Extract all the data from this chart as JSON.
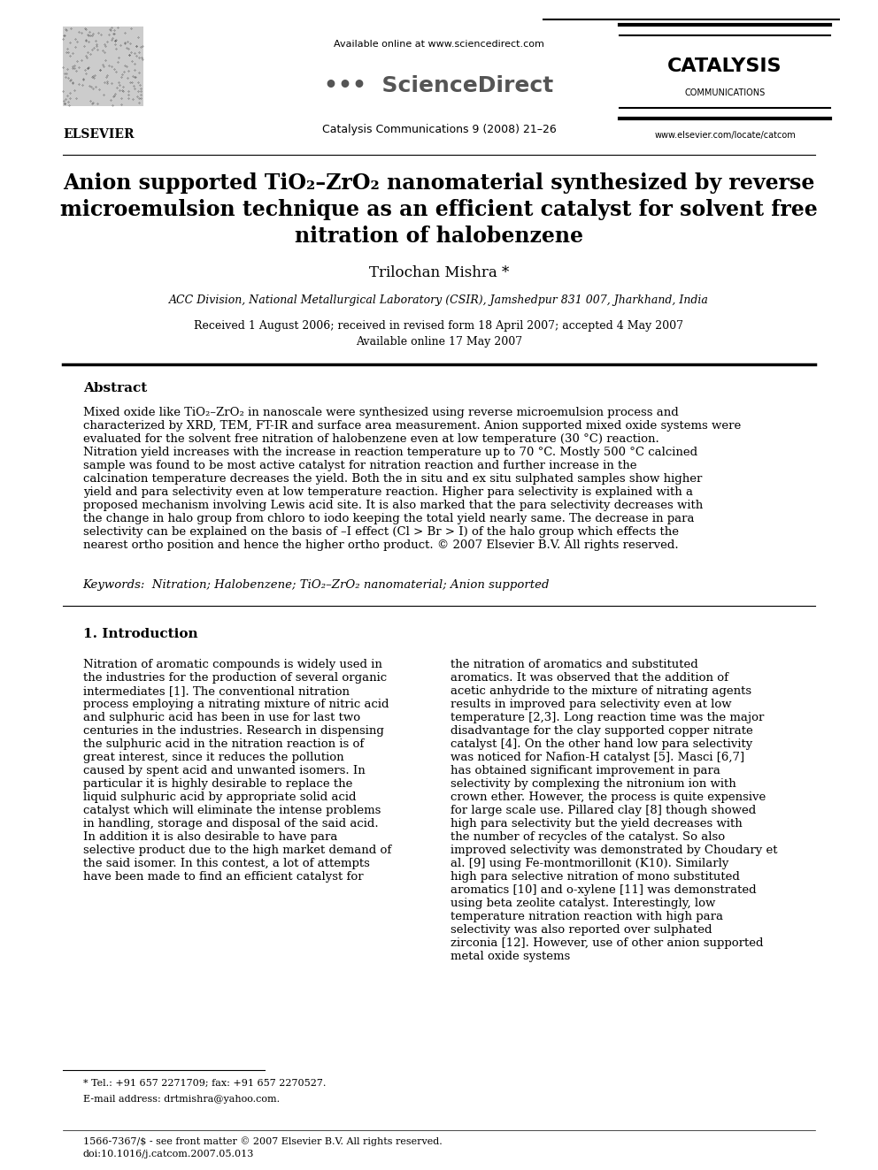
{
  "bg_color": "#ffffff",
  "title_line1": "Anion supported TiO₂–ZrO₂ nanomaterial synthesized by reverse",
  "title_line2": "microemulsion technique as an efficient catalyst for solvent free",
  "title_line3": "nitration of halobenzene",
  "author": "Trilochan Mishra *",
  "affiliation": "ACC Division, National Metallurgical Laboratory (CSIR), Jamshedpur 831 007, Jharkhand, India",
  "dates": "Received 1 August 2006; received in revised form 18 April 2007; accepted 4 May 2007",
  "available": "Available online 17 May 2007",
  "journal_header": "Available online at www.sciencedirect.com",
  "journal_name": "Catalysis Communications 9 (2008) 21–26",
  "journal_website": "www.elsevier.com/locate/catcom",
  "abstract_title": "Abstract",
  "abstract_text": "Mixed oxide like TiO₂–ZrO₂ in nanoscale were synthesized using reverse microemulsion process and characterized by XRD, TEM, FT-IR and surface area measurement. Anion supported mixed oxide systems were evaluated for the solvent free nitration of halobenzene even at low temperature (30 °C) reaction. Nitration yield increases with the increase in reaction temperature up to 70 °C. Mostly 500 °C calcined sample was found to be most active catalyst for nitration reaction and further increase in the calcination temperature decreases the yield. Both the in situ and ex situ sulphated samples show higher yield and para selectivity even at low temperature reaction. Higher para selectivity is explained with a proposed mechanism involving Lewis acid site. It is also marked that the para selectivity decreases with the change in halo group from chloro to iodo keeping the total yield nearly same. The decrease in para selectivity can be explained on the basis of –I effect (Cl > Br > I) of the halo group which effects the nearest ortho position and hence the higher ortho product. © 2007 Elsevier B.V. All rights reserved.",
  "keywords": "Keywords:  Nitration; Halobenzene; TiO₂–ZrO₂ nanomaterial; Anion supported",
  "section1_title": "1. Introduction",
  "section1_left": "Nitration of aromatic compounds is widely used in the industries for the production of several organic intermediates [1]. The conventional nitration process employing a nitrating mixture of nitric acid and sulphuric acid has been in use for last two centuries in the industries. Research in dispensing the sulphuric acid in the nitration reaction is of great interest, since it reduces the pollution caused by spent acid and unwanted isomers. In particular it is highly desirable to replace the liquid sulphuric acid by appropriate solid acid catalyst which will eliminate the intense problems in handling, storage and disposal of the said acid. In addition it is also desirable to have para selective product due to the high market demand of the said isomer. In this contest, a lot of attempts have been made to find an efficient catalyst for",
  "section1_right": "the nitration of aromatics and substituted aromatics. It was observed that the addition of acetic anhydride to the mixture of nitrating agents results in improved para selectivity even at low temperature [2,3]. Long reaction time was the major disadvantage for the clay supported copper nitrate catalyst [4]. On the other hand low para selectivity was noticed for Nafion-H catalyst [5]. Masci [6,7] has obtained significant improvement in para selectivity by complexing the nitronium ion with crown ether. However, the process is quite expensive for large scale use. Pillared clay [8] though showed high para selectivity but the yield decreases with the number of recycles of the catalyst. So also improved selectivity was demonstrated by Choudary et al. [9] using Fe-montmorillonit (K10). Similarly high para selective nitration of mono substituted aromatics [10] and o-xylene [11] was demonstrated using beta zeolite catalyst. Interestingly, low temperature nitration reaction with high para selectivity was also reported over sulphated zirconia [12]. However, use of other anion supported metal oxide systems",
  "footnote1": "* Tel.: +91 657 2271709; fax: +91 657 2270527.",
  "footnote2": "E-mail address: drtmishra@yahoo.com.",
  "footer1": "1566-7367/$ - see front matter © 2007 Elsevier B.V. All rights reserved.",
  "footer2": "doi:10.1016/j.catcom.2007.05.013"
}
